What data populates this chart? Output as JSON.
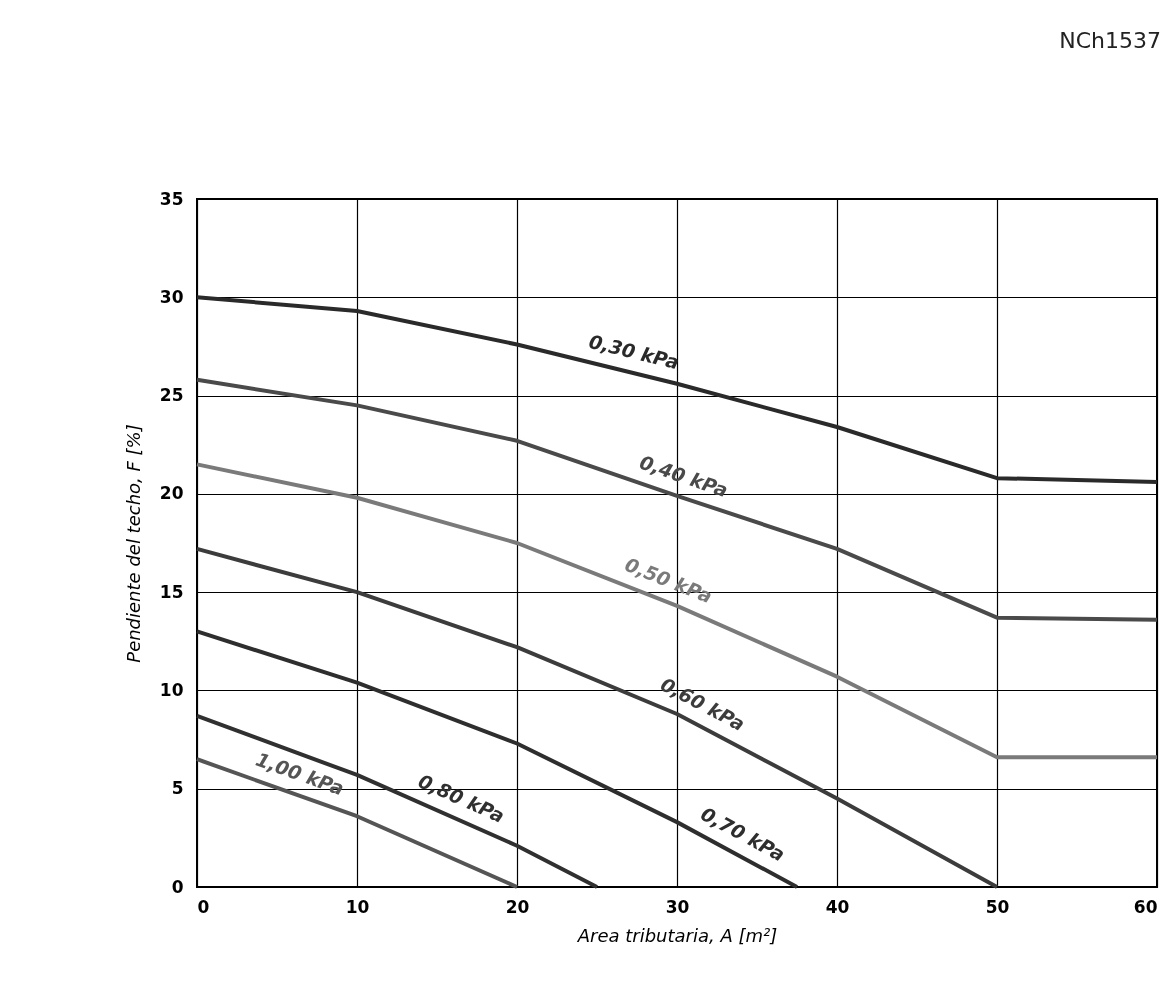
{
  "chart_data": {
    "type": "line",
    "xlabel": "Area tributaria, A [m²]",
    "ylabel": "Pendiente del techo, F [%]",
    "annotations": [
      "NCh1537"
    ],
    "xlim": [
      0,
      60
    ],
    "xticks": [
      0,
      10,
      20,
      30,
      40,
      50,
      60
    ],
    "ylim": [
      0,
      35
    ],
    "yticks": [
      0,
      5,
      10,
      15,
      20,
      25,
      30,
      35
    ],
    "grid": true,
    "legend": false,
    "marker": "none",
    "line_style": "solid",
    "series": [
      {
        "name": "0,30 kPa",
        "color": "#2a2a2a",
        "x": [
          0,
          10,
          20,
          30,
          40,
          50,
          60
        ],
        "values": [
          30,
          29.3,
          27.6,
          25.6,
          23.4,
          20.8,
          20.6
        ]
      },
      {
        "name": "0,40 kPa",
        "color": "#4a4a4a",
        "x": [
          0,
          10,
          20,
          30,
          40,
          50,
          60
        ],
        "values": [
          25.8,
          24.5,
          22.7,
          19.9,
          17.2,
          13.7,
          13.6
        ]
      },
      {
        "name": "0,50 kPa",
        "color": "#7a7a7a",
        "x": [
          0,
          10,
          20,
          30,
          40,
          50,
          60
        ],
        "values": [
          21.5,
          19.8,
          17.5,
          14.3,
          10.7,
          6.6,
          6.6
        ]
      },
      {
        "name": "0,60 kPa",
        "color": "#3c3c3c",
        "x": [
          0,
          10,
          20,
          30,
          40,
          50
        ],
        "values": [
          17.2,
          15,
          12.2,
          8.8,
          4.5,
          0
        ]
      },
      {
        "name": "0,70 kPa",
        "color": "#2e2e2e",
        "x": [
          0,
          10,
          20,
          30,
          37.5
        ],
        "values": [
          13,
          10.4,
          7.3,
          3.3,
          0
        ]
      },
      {
        "name": "0,80 kPa",
        "color": "#303030",
        "x": [
          0,
          10,
          20,
          25
        ],
        "values": [
          8.7,
          5.7,
          2.1,
          0
        ]
      },
      {
        "name": "1,00 kPa",
        "color": "#555555",
        "x": [
          0,
          10,
          20
        ],
        "values": [
          6.5,
          3.6,
          0
        ]
      }
    ]
  }
}
